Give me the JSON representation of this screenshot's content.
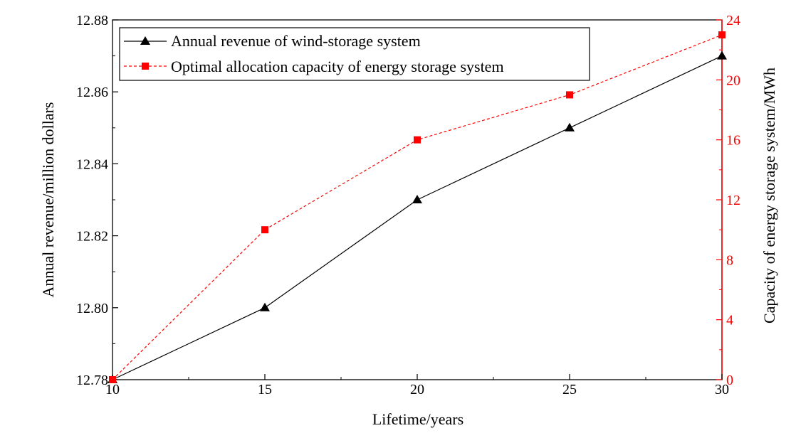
{
  "chart_data": {
    "type": "line",
    "x": [
      10,
      15,
      20,
      25,
      30
    ],
    "xlabel": "Lifetime/years",
    "xlim": [
      10,
      30
    ],
    "xticks": [
      "10",
      "15",
      "20",
      "25",
      "30"
    ],
    "ylabel": "Annual revenue/million dollars",
    "ylim": [
      12.78,
      12.88
    ],
    "yticks": [
      "12.78",
      "12.80",
      "12.82",
      "12.84",
      "12.86",
      "12.88"
    ],
    "y2label": "Capacity of energy storage system/MWh",
    "y2lim": [
      0,
      24
    ],
    "y2ticks": [
      "0",
      "4",
      "8",
      "12",
      "16",
      "20",
      "24"
    ],
    "legend_position": "top-left",
    "grid": false,
    "series": [
      {
        "name": "Annual revenue of wind-storage system",
        "axis": "left",
        "values": [
          12.78,
          12.8,
          12.83,
          12.85,
          12.87
        ],
        "color": "#000000",
        "marker": "triangle",
        "line_style": "solid"
      },
      {
        "name": "Optimal allocation capacity of energy storage system",
        "axis": "right",
        "values": [
          0,
          10,
          16,
          19,
          23
        ],
        "color": "#ff0000",
        "marker": "square",
        "line_style": "dashed"
      }
    ]
  }
}
